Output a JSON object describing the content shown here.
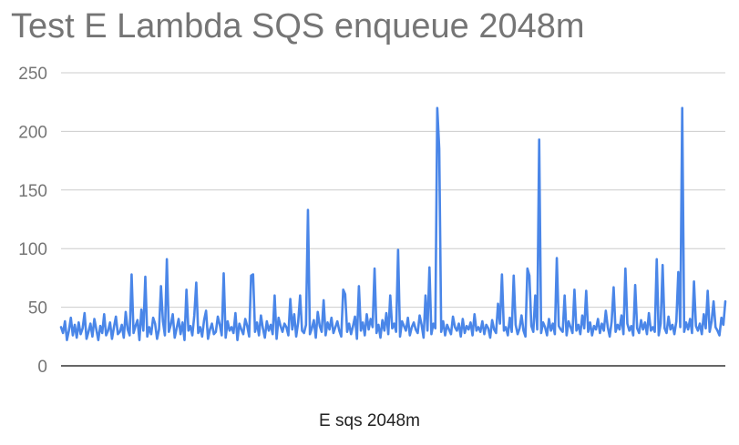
{
  "chart_data": {
    "type": "line",
    "title": "Test E Lambda SQS enqueue 2048m",
    "xlabel": "E sqs 2048m",
    "ylabel": "",
    "ylim": [
      0,
      250
    ],
    "yticks": [
      0,
      50,
      100,
      150,
      200,
      250
    ],
    "grid": true,
    "legend": "none",
    "colors": {
      "series": "#4a86e8",
      "grid": "#cccccc",
      "axis": "#333333",
      "tick_label": "#757575"
    },
    "series": [
      {
        "values": [
          33,
          28,
          38,
          22,
          30,
          41,
          26,
          35,
          24,
          37,
          27,
          32,
          45,
          23,
          29,
          36,
          25,
          40,
          31,
          22,
          34,
          28,
          44,
          26,
          30,
          37,
          23,
          33,
          42,
          27,
          29,
          35,
          24,
          46,
          31,
          26,
          78,
          28,
          34,
          39,
          22,
          48,
          30,
          76,
          25,
          33,
          27,
          41,
          36,
          23,
          31,
          68,
          38,
          26,
          91,
          29,
          35,
          44,
          24,
          32,
          40,
          27,
          37,
          22,
          65,
          30,
          34,
          26,
          43,
          71,
          28,
          33,
          25,
          39,
          47,
          23,
          31,
          36,
          27,
          29,
          42,
          35,
          26,
          79,
          24,
          38,
          30,
          33,
          28,
          45,
          22,
          36,
          31,
          27,
          40,
          34,
          25,
          77,
          78,
          29,
          37,
          26,
          43,
          32,
          24,
          38,
          30,
          35,
          27,
          60,
          23,
          41,
          34,
          29,
          36,
          33,
          26,
          57,
          31,
          44,
          25,
          37,
          60,
          30,
          28,
          35,
          133,
          27,
          32,
          39,
          24,
          46,
          34,
          29,
          56,
          26,
          37,
          31,
          41,
          28,
          33,
          38,
          30,
          25,
          65,
          61,
          29,
          36,
          27,
          34,
          42,
          23,
          68,
          30,
          37,
          26,
          44,
          31,
          40,
          33,
          83,
          28,
          35,
          24,
          39,
          30,
          45,
          27,
          60,
          32,
          36,
          29,
          99,
          25,
          38,
          34,
          30,
          41,
          26,
          33,
          37,
          31,
          28,
          43,
          35,
          24,
          60,
          30,
          84,
          27,
          36,
          32,
          220,
          185,
          29,
          38,
          26,
          35,
          31,
          27,
          42,
          33,
          30,
          36,
          25,
          40,
          28,
          34,
          31,
          37,
          26,
          44,
          30,
          33,
          29,
          38,
          27,
          35,
          32,
          24,
          39,
          31,
          28,
          53,
          36,
          78,
          30,
          33,
          26,
          41,
          29,
          77,
          35,
          27,
          32,
          43,
          30,
          25,
          83,
          77,
          34,
          29,
          60,
          31,
          193,
          28,
          37,
          33,
          26,
          40,
          30,
          36,
          27,
          92,
          34,
          31,
          29,
          60,
          26,
          38,
          33,
          28,
          65,
          30,
          35,
          27,
          43,
          32,
          64,
          29,
          37,
          26,
          34,
          31,
          40,
          28,
          36,
          30,
          47,
          33,
          25,
          38,
          67,
          29,
          35,
          31,
          43,
          27,
          83,
          36,
          30,
          34,
          26,
          69,
          32,
          28,
          39,
          31,
          37,
          27,
          45,
          30,
          33,
          29,
          91,
          26,
          36,
          86,
          32,
          28,
          42,
          31,
          35,
          27,
          38,
          80,
          33,
          220,
          29,
          37,
          31,
          40,
          28,
          72,
          34,
          30,
          36,
          27,
          44,
          32,
          64,
          29,
          38,
          55,
          33,
          30,
          26,
          41,
          35,
          55
        ]
      }
    ]
  }
}
